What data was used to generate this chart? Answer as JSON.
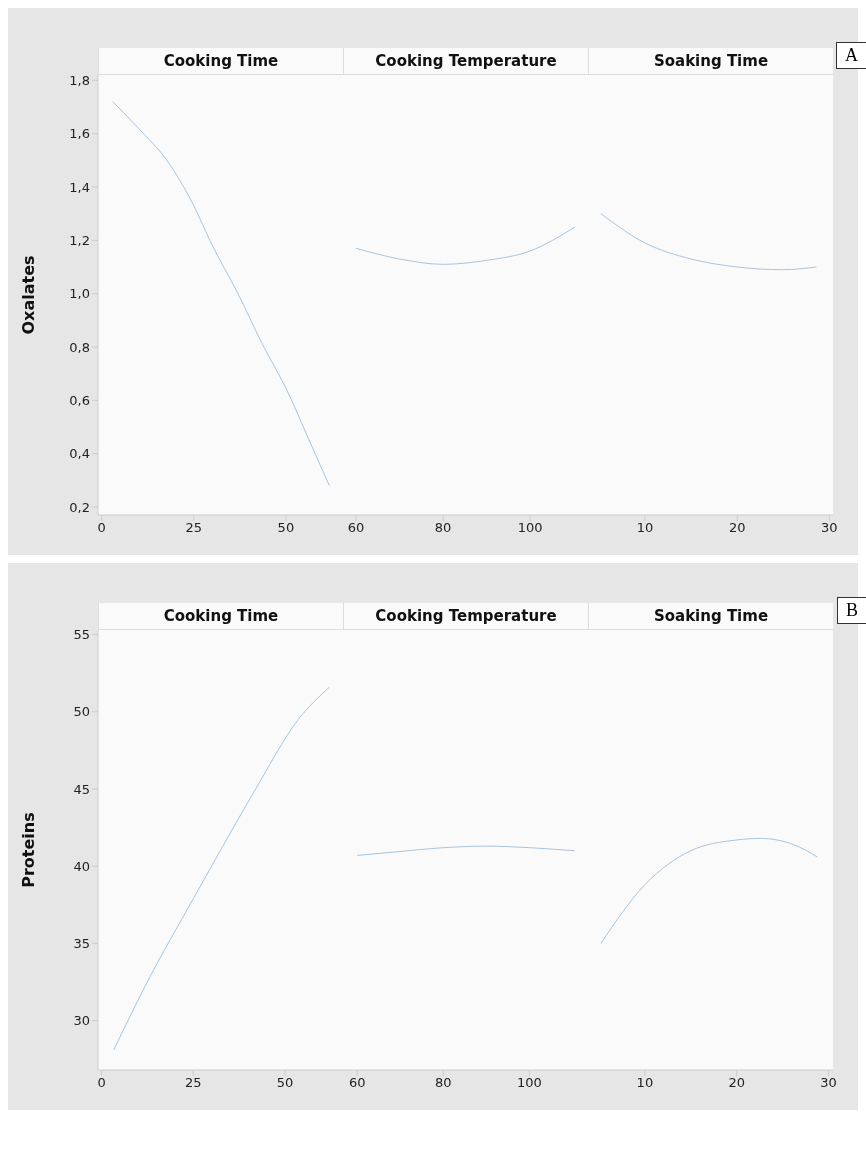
{
  "chart_data": [
    {
      "type": "line",
      "title": "Cooking Time",
      "ylabel": "Oxalates",
      "x": [
        3,
        10,
        17.7,
        25,
        29.7,
        37,
        43.3,
        50.9,
        56,
        61.8
      ],
      "series": [
        {
          "color": "#a9c4de",
          "values": [
            1.72,
            1.62,
            1.5,
            1.33,
            1.19,
            1.0,
            0.82,
            0.62,
            0.46,
            0.28
          ]
        }
      ],
      "xlim": [
        -1,
        65.5
      ],
      "xticks": [
        0,
        25,
        50
      ],
      "ylim": [
        0.17,
        1.82
      ],
      "yticks": [
        {
          "value": 0.2,
          "label": "0,2"
        },
        {
          "value": 0.4,
          "label": "0,4"
        },
        {
          "value": 0.6,
          "label": "0,6"
        },
        {
          "value": 0.8,
          "label": "0,8"
        },
        {
          "value": 1.0,
          "label": "1,0"
        },
        {
          "value": 1.2,
          "label": "1,2"
        },
        {
          "value": 1.4,
          "label": "1,4"
        },
        {
          "value": 1.6,
          "label": "1,6"
        },
        {
          "value": 1.8,
          "label": "1,8"
        }
      ],
      "grid": false
    },
    {
      "type": "line",
      "title": "Cooking Temperature",
      "x": [
        60,
        70,
        80,
        90,
        100,
        110.3
      ],
      "series": [
        {
          "color": "#a9c4de",
          "values": [
            1.17,
            1.13,
            1.11,
            1.125,
            1.16,
            1.25
          ]
        }
      ],
      "xlim": [
        57,
        113.3
      ],
      "xticks": [
        60,
        80,
        100
      ],
      "ylim": [
        0.17,
        1.82
      ],
      "tick_labels": "x",
      "grid": false
    },
    {
      "type": "line",
      "title": "Soaking Time",
      "annotations": [
        "A"
      ],
      "x": [
        5.2,
        10,
        15,
        20,
        25,
        28.6
      ],
      "series": [
        {
          "color": "#a9c4de",
          "values": [
            1.3,
            1.19,
            1.13,
            1.1,
            1.09,
            1.1
          ]
        }
      ],
      "xlim": [
        3.8,
        30.4
      ],
      "xticks": [
        10,
        20,
        30
      ],
      "ylim": [
        0.17,
        1.82
      ],
      "tick_labels": "x",
      "grid": false
    },
    {
      "type": "line",
      "title": "Cooking Time",
      "ylabel": "Proteins",
      "x": [
        3.3,
        12,
        25,
        30.2,
        41.5,
        53.6,
        62.1
      ],
      "series": [
        {
          "color": "#a9c4de",
          "values": [
            28.1,
            32.3,
            37.9,
            40.1,
            44.8,
            49.5,
            51.6
          ]
        }
      ],
      "xlim": [
        -1,
        65.8
      ],
      "xticks": [
        0,
        25,
        50
      ],
      "ylim": [
        26.8,
        55.3
      ],
      "yticks": [
        30,
        35,
        40,
        45,
        50,
        55
      ],
      "grid": false
    },
    {
      "type": "line",
      "title": "Cooking Temperature",
      "x": [
        60,
        68,
        80,
        90,
        100,
        110.5
      ],
      "series": [
        {
          "color": "#a9c4de",
          "values": [
            40.7,
            40.9,
            41.2,
            41.3,
            41.2,
            41.0
          ]
        }
      ],
      "xlim": [
        56.7,
        113.6
      ],
      "xticks": [
        60,
        80,
        100
      ],
      "ylim": [
        26.8,
        55.3
      ],
      "tick_labels": "x",
      "grid": false
    },
    {
      "type": "line",
      "title": "Soaking Time",
      "annotations": [
        "B"
      ],
      "x": [
        5.2,
        10,
        15,
        20,
        22.6,
        26.2,
        28.8
      ],
      "series": [
        {
          "color": "#a9c4de",
          "values": [
            35.0,
            38.8,
            41.0,
            41.7,
            41.8,
            41.4,
            40.6
          ]
        }
      ],
      "xlim": [
        3.8,
        30.5
      ],
      "xticks": [
        10,
        20,
        30
      ],
      "ylim": [
        26.8,
        55.3
      ],
      "tick_labels": "x",
      "grid": false
    }
  ]
}
